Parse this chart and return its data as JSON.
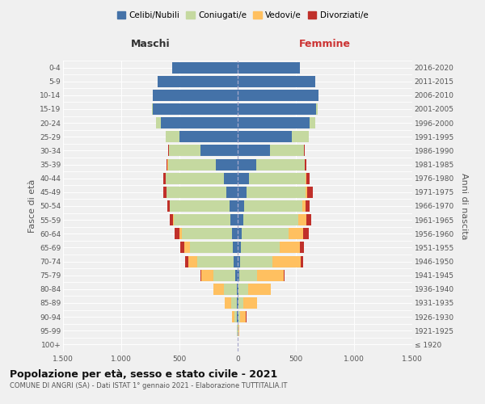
{
  "age_groups": [
    "100+",
    "95-99",
    "90-94",
    "85-89",
    "80-84",
    "75-79",
    "70-74",
    "65-69",
    "60-64",
    "55-59",
    "50-54",
    "45-49",
    "40-44",
    "35-39",
    "30-34",
    "25-29",
    "20-24",
    "15-19",
    "10-14",
    "5-9",
    "0-4"
  ],
  "birth_years": [
    "≤ 1920",
    "1921-1925",
    "1926-1930",
    "1931-1935",
    "1936-1940",
    "1941-1945",
    "1946-1950",
    "1951-1955",
    "1956-1960",
    "1961-1965",
    "1966-1970",
    "1971-1975",
    "1976-1980",
    "1981-1985",
    "1986-1990",
    "1991-1995",
    "1996-2000",
    "2001-2005",
    "2006-2010",
    "2011-2015",
    "2016-2020"
  ],
  "maschi": {
    "celibi": [
      0,
      2,
      5,
      8,
      10,
      20,
      35,
      45,
      50,
      60,
      70,
      95,
      120,
      185,
      320,
      500,
      660,
      730,
      730,
      690,
      560
    ],
    "coniugati": [
      0,
      3,
      20,
      50,
      110,
      190,
      315,
      365,
      430,
      490,
      510,
      515,
      500,
      415,
      270,
      115,
      38,
      8,
      2,
      0,
      0
    ],
    "vedovi": [
      0,
      4,
      22,
      50,
      85,
      105,
      75,
      48,
      22,
      8,
      4,
      2,
      1,
      1,
      0,
      0,
      0,
      0,
      0,
      0,
      0
    ],
    "divorziati": [
      0,
      0,
      1,
      2,
      4,
      7,
      28,
      32,
      38,
      28,
      22,
      28,
      18,
      9,
      4,
      1,
      0,
      0,
      0,
      0,
      0
    ]
  },
  "femmine": {
    "nubili": [
      0,
      2,
      4,
      7,
      9,
      14,
      22,
      28,
      33,
      48,
      58,
      78,
      98,
      158,
      275,
      465,
      615,
      675,
      695,
      665,
      535
    ],
    "coniugate": [
      0,
      4,
      18,
      42,
      80,
      155,
      275,
      335,
      405,
      475,
      495,
      505,
      485,
      415,
      295,
      145,
      52,
      13,
      2,
      0,
      0
    ],
    "vedove": [
      0,
      8,
      50,
      115,
      195,
      225,
      245,
      175,
      125,
      65,
      28,
      13,
      4,
      2,
      1,
      0,
      0,
      0,
      0,
      0,
      0
    ],
    "divorziate": [
      0,
      0,
      1,
      2,
      4,
      7,
      22,
      28,
      48,
      42,
      38,
      48,
      28,
      13,
      4,
      1,
      0,
      0,
      0,
      0,
      0
    ]
  },
  "color_celibi": "#4472a8",
  "color_coniugati": "#c5d9a0",
  "color_vedovi": "#ffc060",
  "color_divorziati": "#c0302a",
  "xlim": 1500,
  "title_main": "Popolazione per età, sesso e stato civile - 2021",
  "title_sub": "COMUNE DI ANGRI (SA) - Dati ISTAT 1° gennaio 2021 - Elaborazione TUTTITALIA.IT",
  "ylabel_left": "Fasce di età",
  "ylabel_right": "Anni di nascita",
  "xlabel_left": "Maschi",
  "xlabel_right": "Femmine",
  "bg_color": "#f0f0f0"
}
